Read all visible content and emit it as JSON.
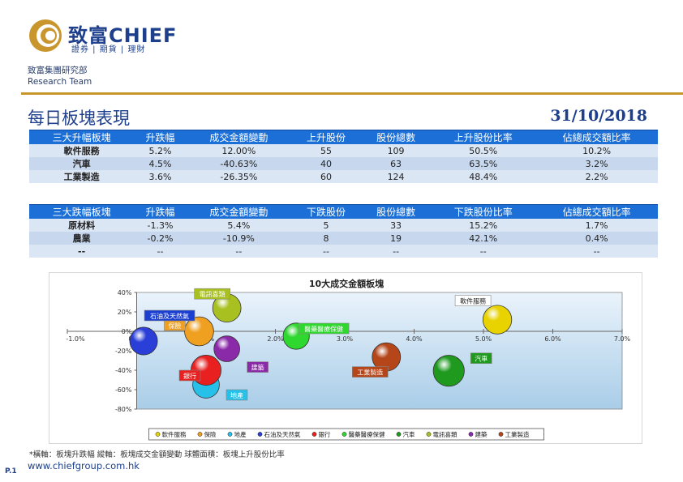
{
  "header": {
    "logo_name": "致富CHIEF",
    "logo_sub": "證券 | 期貨 | 理財",
    "dept_cn": "致富集團研究部",
    "dept_en": "Research Team"
  },
  "page_title": "每日板塊表現",
  "page_date": "31/10/2018",
  "top_gainers": {
    "headers": [
      "三大升幅板塊",
      "升跌幅",
      "成交金額變動",
      "上升股份",
      "股份總數",
      "上升股份比率",
      "佔總成交額比率"
    ],
    "rows": [
      [
        "軟件服務",
        "5.2%",
        "12.00%",
        "55",
        "109",
        "50.5%",
        "10.2%"
      ],
      [
        "汽車",
        "4.5%",
        "-40.63%",
        "40",
        "63",
        "63.5%",
        "3.2%"
      ],
      [
        "工業製造",
        "3.6%",
        "-26.35%",
        "60",
        "124",
        "48.4%",
        "2.2%"
      ]
    ]
  },
  "top_losers": {
    "headers": [
      "三大跌幅板塊",
      "升跌幅",
      "成交金額變動",
      "下跌股份",
      "股份總數",
      "下跌股份比率",
      "佔總成交額比率"
    ],
    "rows": [
      [
        "原材料",
        "-1.3%",
        "5.4%",
        "5",
        "33",
        "15.2%",
        "1.7%"
      ],
      [
        "農業",
        "-0.2%",
        "-10.9%",
        "8",
        "19",
        "42.1%",
        "0.4%"
      ],
      [
        "--",
        "--",
        "--",
        "--",
        "--",
        "--",
        "--"
      ]
    ]
  },
  "chart_data": {
    "type": "scatter",
    "title": "10大成交金額板塊",
    "xlim": [
      -1.0,
      7.0
    ],
    "ylim": [
      -80,
      40
    ],
    "x_ticks": [
      "-1.0%",
      "0.0%",
      "1.0%",
      "2.0%",
      "3.0%",
      "4.0%",
      "5.0%",
      "6.0%",
      "7.0%"
    ],
    "y_ticks": [
      "40%",
      "20%",
      "0%",
      "-20%",
      "-40%",
      "-60%",
      "-80%"
    ],
    "legend_position": "bottom",
    "series": [
      {
        "name": "軟件服務",
        "x": 5.2,
        "y": 12.0,
        "size": 50.5,
        "color": "#e8d200"
      },
      {
        "name": "保險",
        "x": 0.9,
        "y": 0.0,
        "size": 52.0,
        "color": "#f0a020"
      },
      {
        "name": "地產",
        "x": 1.0,
        "y": -55.0,
        "size": 40.0,
        "color": "#27c0e8"
      },
      {
        "name": "石油及天然氣",
        "x": 0.1,
        "y": -10.0,
        "size": 45.0,
        "color": "#2a3fd8"
      },
      {
        "name": "銀行",
        "x": 1.0,
        "y": -40.0,
        "size": 58.0,
        "color": "#e82020"
      },
      {
        "name": "醫藥醫療保健",
        "x": 2.3,
        "y": -5.0,
        "size": 38.0,
        "color": "#2ed82e"
      },
      {
        "name": "汽車",
        "x": 4.5,
        "y": -40.6,
        "size": 63.5,
        "color": "#1f9a1f"
      },
      {
        "name": "電訊喜類",
        "x": 1.3,
        "y": 24.0,
        "size": 48.0,
        "color": "#a8c020"
      },
      {
        "name": "建築",
        "x": 1.3,
        "y": -18.0,
        "size": 36.0,
        "color": "#8a2aa8"
      },
      {
        "name": "工業製造",
        "x": 3.6,
        "y": -26.35,
        "size": 48.4,
        "color": "#b4461a"
      }
    ]
  },
  "footnote": "*橫軸：板塊升跌幅      縱軸：板塊成交金額變動      球體面積：板塊上升股份比率",
  "url": "www.chiefgroup.com.hk",
  "page_num": "P.1"
}
